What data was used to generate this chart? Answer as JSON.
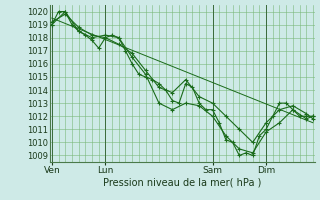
{
  "bg_color": "#ceeae7",
  "grid_color": "#7ab87a",
  "line_color": "#1a6b1a",
  "xlabel": "Pression niveau de la mer( hPa )",
  "ylim": [
    1008.5,
    1020.5
  ],
  "yticks": [
    1009,
    1010,
    1011,
    1012,
    1013,
    1014,
    1015,
    1016,
    1017,
    1018,
    1019,
    1020
  ],
  "xtick_labels": [
    "Ven",
    "Lun",
    "Sam",
    "Dim"
  ],
  "xtick_positions": [
    0,
    24,
    72,
    96
  ],
  "xlim": [
    -1,
    118
  ],
  "vlines": [
    0,
    24,
    72,
    96
  ],
  "series1": [
    [
      0,
      1019.0
    ],
    [
      3,
      1020.0
    ],
    [
      6,
      1020.0
    ],
    [
      9,
      1019.0
    ],
    [
      12,
      1018.5
    ],
    [
      15,
      1018.2
    ],
    [
      18,
      1017.8
    ],
    [
      21,
      1017.2
    ],
    [
      24,
      1018.0
    ],
    [
      27,
      1018.2
    ],
    [
      30,
      1018.0
    ],
    [
      33,
      1017.0
    ],
    [
      36,
      1016.0
    ],
    [
      39,
      1015.2
    ],
    [
      42,
      1015.0
    ],
    [
      45,
      1014.8
    ],
    [
      48,
      1014.5
    ],
    [
      51,
      1014.0
    ],
    [
      54,
      1013.2
    ],
    [
      57,
      1013.0
    ],
    [
      60,
      1014.5
    ],
    [
      63,
      1014.2
    ],
    [
      66,
      1013.0
    ],
    [
      69,
      1012.5
    ],
    [
      72,
      1012.5
    ],
    [
      75,
      1011.5
    ],
    [
      78,
      1010.2
    ],
    [
      81,
      1010.0
    ],
    [
      84,
      1009.0
    ],
    [
      87,
      1009.2
    ],
    [
      90,
      1009.0
    ],
    [
      93,
      1010.5
    ],
    [
      96,
      1011.0
    ],
    [
      99,
      1012.0
    ],
    [
      102,
      1013.0
    ],
    [
      105,
      1013.0
    ],
    [
      108,
      1012.5
    ],
    [
      111,
      1012.0
    ],
    [
      114,
      1012.0
    ],
    [
      117,
      1012.0
    ]
  ],
  "series2": [
    [
      0,
      1019.0
    ],
    [
      6,
      1020.0
    ],
    [
      12,
      1018.5
    ],
    [
      18,
      1018.0
    ],
    [
      24,
      1018.2
    ],
    [
      30,
      1018.0
    ],
    [
      36,
      1016.5
    ],
    [
      42,
      1015.2
    ],
    [
      48,
      1013.0
    ],
    [
      54,
      1012.5
    ],
    [
      60,
      1013.0
    ],
    [
      66,
      1012.8
    ],
    [
      72,
      1012.0
    ],
    [
      78,
      1010.5
    ],
    [
      84,
      1009.5
    ],
    [
      90,
      1009.2
    ],
    [
      96,
      1010.8
    ],
    [
      102,
      1011.5
    ],
    [
      108,
      1012.5
    ],
    [
      114,
      1011.8
    ],
    [
      117,
      1012.0
    ]
  ],
  "series3": [
    [
      0,
      1019.2
    ],
    [
      6,
      1019.8
    ],
    [
      12,
      1018.8
    ],
    [
      18,
      1018.2
    ],
    [
      24,
      1018.0
    ],
    [
      30,
      1017.5
    ],
    [
      36,
      1016.8
    ],
    [
      42,
      1015.5
    ],
    [
      48,
      1014.2
    ],
    [
      54,
      1013.8
    ],
    [
      60,
      1014.8
    ],
    [
      66,
      1013.5
    ],
    [
      72,
      1013.0
    ],
    [
      78,
      1012.0
    ],
    [
      84,
      1011.0
    ],
    [
      90,
      1010.0
    ],
    [
      96,
      1011.5
    ],
    [
      102,
      1012.5
    ],
    [
      108,
      1012.8
    ],
    [
      114,
      1012.2
    ],
    [
      117,
      1011.8
    ]
  ],
  "series_diag": [
    [
      0,
      1019.5
    ],
    [
      117,
      1011.5
    ]
  ]
}
